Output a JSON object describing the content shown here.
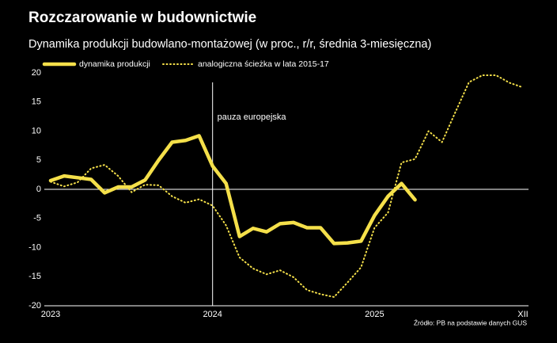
{
  "chart_data": {
    "type": "line",
    "title": "Rozczarowanie w budownictwie",
    "subtitle": "Dynamika produkcji budowlano-montażowej (w proc., r/r, średnia 3-miesięczna)",
    "source": "Źródło: PB na podstawie danych GUS",
    "annotation": {
      "text": "pauza europejska",
      "x": "2024"
    },
    "categories": [
      "2023",
      null,
      null,
      null,
      null,
      null,
      null,
      null,
      null,
      null,
      null,
      null,
      "2024",
      null,
      null,
      null,
      null,
      null,
      null,
      null,
      null,
      null,
      null,
      null,
      "2025",
      null,
      null,
      null,
      null,
      null,
      null,
      null,
      null,
      null,
      null,
      "XII"
    ],
    "series": [
      {
        "name": "dynamika produkcji",
        "color": "#f5e04a",
        "style": "solid",
        "values": [
          1.5,
          2.3,
          2.0,
          1.7,
          -0.6,
          0.4,
          0.4,
          1.6,
          5.0,
          8.1,
          8.4,
          9.2,
          4.0,
          1.0,
          -8.1,
          -6.7,
          -7.3,
          -5.9,
          -5.7,
          -6.6,
          -6.6,
          -9.3,
          -9.2,
          -8.9,
          -4.5,
          -1.2,
          1.0,
          -1.8,
          null,
          null,
          null,
          null,
          null,
          null,
          null,
          null
        ]
      },
      {
        "name": "analogiczna ścieżka w lata 2015-17",
        "color": "#f5e04a",
        "style": "dotted",
        "values": [
          1.3,
          0.5,
          1.2,
          3.6,
          4.2,
          2.3,
          -0.5,
          0.8,
          0.7,
          -1.2,
          -2.3,
          -1.7,
          -2.8,
          -6.2,
          -11.7,
          -13.6,
          -14.6,
          -13.9,
          -15.1,
          -17.3,
          -18.0,
          -18.5,
          -16.0,
          -13.4,
          -6.6,
          -4.0,
          4.6,
          5.2,
          10.0,
          8.1,
          13.3,
          18.4,
          19.6,
          19.6,
          18.3,
          17.5
        ]
      }
    ],
    "ylim": [
      -20,
      20
    ],
    "yticks": [
      -20,
      -15,
      -10,
      -5,
      0,
      5,
      10,
      15,
      20
    ],
    "grid": false
  }
}
